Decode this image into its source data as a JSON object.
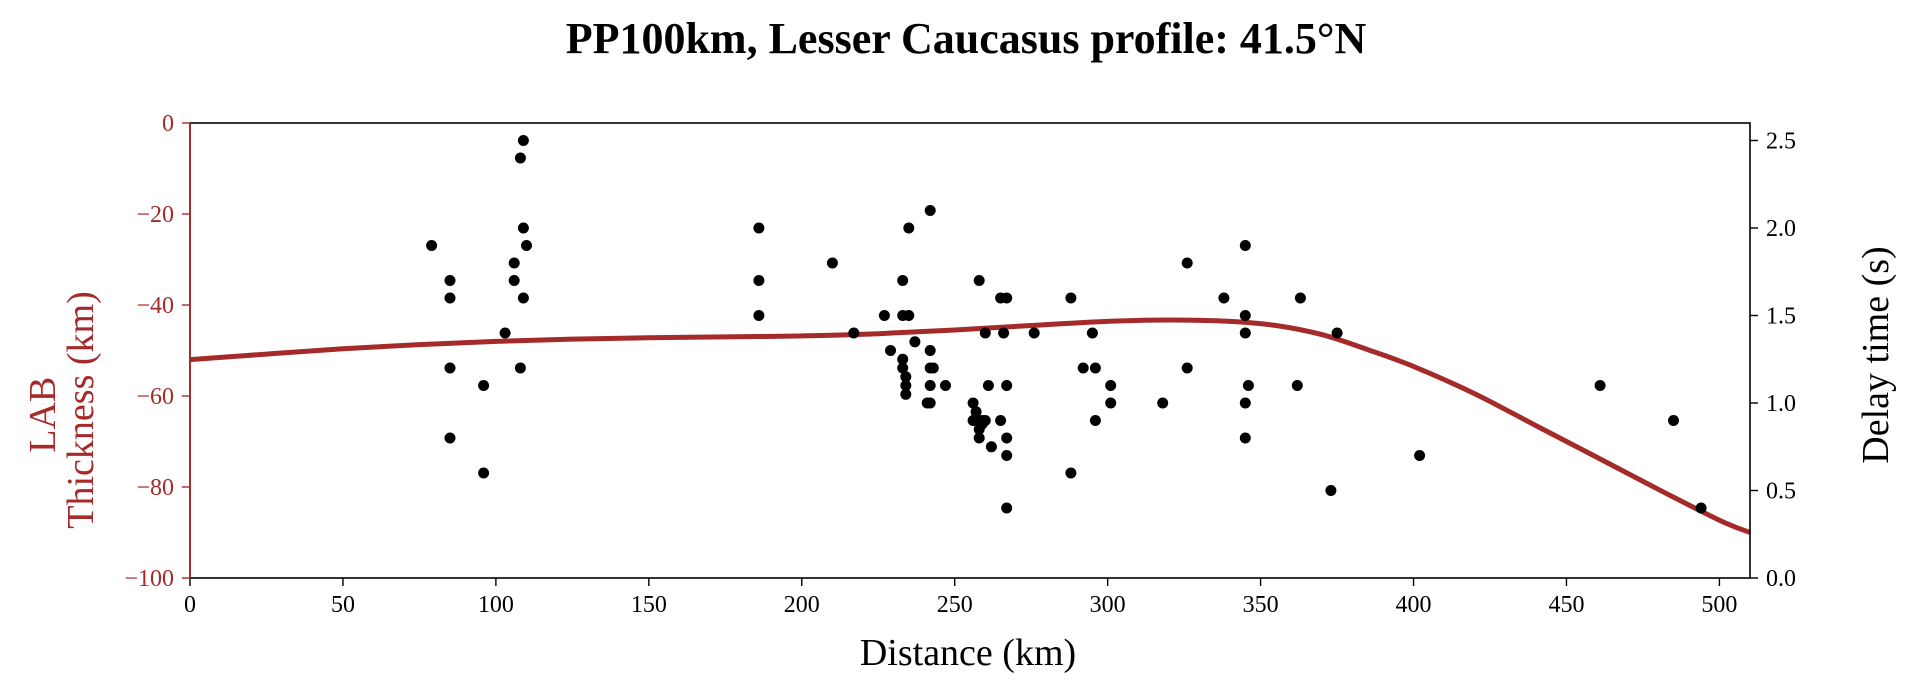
{
  "chart_data": {
    "type": "scatter",
    "title": "PP100km, Lesser Caucasus profile: 41.5°N",
    "xlabel": "Distance (km)",
    "ylabel_left_lines": [
      "LAB",
      "Thickness (km)"
    ],
    "ylabel_right": "Delay time (s)",
    "xlim": [
      0,
      510
    ],
    "ylim_left": [
      -100,
      0
    ],
    "ylim_right": [
      0,
      2.6
    ],
    "xticks": [
      0,
      50,
      100,
      150,
      200,
      250,
      300,
      350,
      400,
      450,
      500
    ],
    "xtick_labels": [
      "0",
      "50",
      "100",
      "150",
      "200",
      "250",
      "300",
      "350",
      "400",
      "450",
      "500"
    ],
    "yticks_left": [
      0,
      -20,
      -40,
      -60,
      -80,
      -100
    ],
    "ytick_labels_left": [
      "0",
      "−20",
      "−40",
      "−60",
      "−80",
      "−100"
    ],
    "yticks_right": [
      0.0,
      0.5,
      1.0,
      1.5,
      2.0,
      2.5
    ],
    "ytick_labels_right": [
      "0.0",
      "0.5",
      "1.0",
      "1.5",
      "2.0",
      "2.5"
    ],
    "colors": {
      "lab_line": "#a52a2a",
      "left_axis": "#a52a2a",
      "points": "#000000",
      "axis": "#000000"
    },
    "series": [
      {
        "kind": "line",
        "axis": "left",
        "x": [
          0,
          25,
          50,
          75,
          100,
          125,
          150,
          175,
          200,
          225,
          250,
          275,
          300,
          320,
          340,
          355,
          370,
          385,
          400,
          420,
          440,
          460,
          480,
          500,
          510
        ],
        "y": [
          -52,
          -50.8,
          -49.6,
          -48.7,
          -48,
          -47.5,
          -47.2,
          -47,
          -46.8,
          -46.3,
          -45.5,
          -44.5,
          -43.6,
          -43.3,
          -43.6,
          -44.5,
          -46.5,
          -49.8,
          -53.5,
          -59.5,
          -66.5,
          -73.5,
          -80.5,
          -87.3,
          -90
        ]
      },
      {
        "kind": "scatter",
        "axis": "right",
        "points": [
          [
            79,
            1.9
          ],
          [
            85,
            1.7
          ],
          [
            85,
            1.6
          ],
          [
            85,
            1.2
          ],
          [
            85,
            0.8
          ],
          [
            96,
            1.1
          ],
          [
            96,
            0.6
          ],
          [
            103,
            1.4
          ],
          [
            106,
            1.8
          ],
          [
            106,
            1.7
          ],
          [
            108,
            2.4
          ],
          [
            108,
            1.2
          ],
          [
            109,
            2.5
          ],
          [
            109,
            2.0
          ],
          [
            109,
            1.6
          ],
          [
            110,
            1.9
          ],
          [
            186,
            2.0
          ],
          [
            186,
            1.7
          ],
          [
            186,
            1.5
          ],
          [
            210,
            1.8
          ],
          [
            217,
            1.4
          ],
          [
            227,
            1.5
          ],
          [
            229,
            1.3
          ],
          [
            233,
            1.7
          ],
          [
            233,
            1.5
          ],
          [
            233,
            1.25
          ],
          [
            233,
            1.2
          ],
          [
            234,
            1.15
          ],
          [
            234,
            1.1
          ],
          [
            234,
            1.05
          ],
          [
            235,
            2.0
          ],
          [
            235,
            1.5
          ],
          [
            237,
            1.35
          ],
          [
            241,
            1.0
          ],
          [
            242,
            2.1
          ],
          [
            242,
            1.3
          ],
          [
            242,
            1.2
          ],
          [
            242,
            1.1
          ],
          [
            242,
            1.0
          ],
          [
            243,
            1.2
          ],
          [
            247,
            1.1
          ],
          [
            256,
            1.0
          ],
          [
            256,
            0.9
          ],
          [
            257,
            0.95
          ],
          [
            258,
            1.7
          ],
          [
            258,
            0.85
          ],
          [
            258,
            0.8
          ],
          [
            259,
            0.9
          ],
          [
            259,
            0.88
          ],
          [
            260,
            1.4
          ],
          [
            260,
            0.9
          ],
          [
            261,
            1.1
          ],
          [
            262,
            0.75
          ],
          [
            265,
            1.6
          ],
          [
            265,
            0.9
          ],
          [
            266,
            1.4
          ],
          [
            267,
            1.6
          ],
          [
            267,
            1.1
          ],
          [
            267,
            0.8
          ],
          [
            267,
            0.7
          ],
          [
            267,
            0.4
          ],
          [
            276,
            1.4
          ],
          [
            288,
            1.6
          ],
          [
            288,
            0.6
          ],
          [
            292,
            1.2
          ],
          [
            295,
            1.4
          ],
          [
            296,
            1.2
          ],
          [
            296,
            0.9
          ],
          [
            301,
            1.1
          ],
          [
            301,
            1.0
          ],
          [
            318,
            1.0
          ],
          [
            326,
            1.8
          ],
          [
            326,
            1.2
          ],
          [
            338,
            1.6
          ],
          [
            345,
            1.9
          ],
          [
            345,
            1.5
          ],
          [
            345,
            1.4
          ],
          [
            345,
            1.0
          ],
          [
            345,
            0.8
          ],
          [
            346,
            1.1
          ],
          [
            362,
            1.1
          ],
          [
            363,
            1.6
          ],
          [
            373,
            0.5
          ],
          [
            375,
            1.4
          ],
          [
            402,
            0.7
          ],
          [
            461,
            1.1
          ],
          [
            485,
            0.9
          ],
          [
            494,
            0.4
          ]
        ]
      }
    ],
    "grid": false,
    "legend": "none"
  }
}
